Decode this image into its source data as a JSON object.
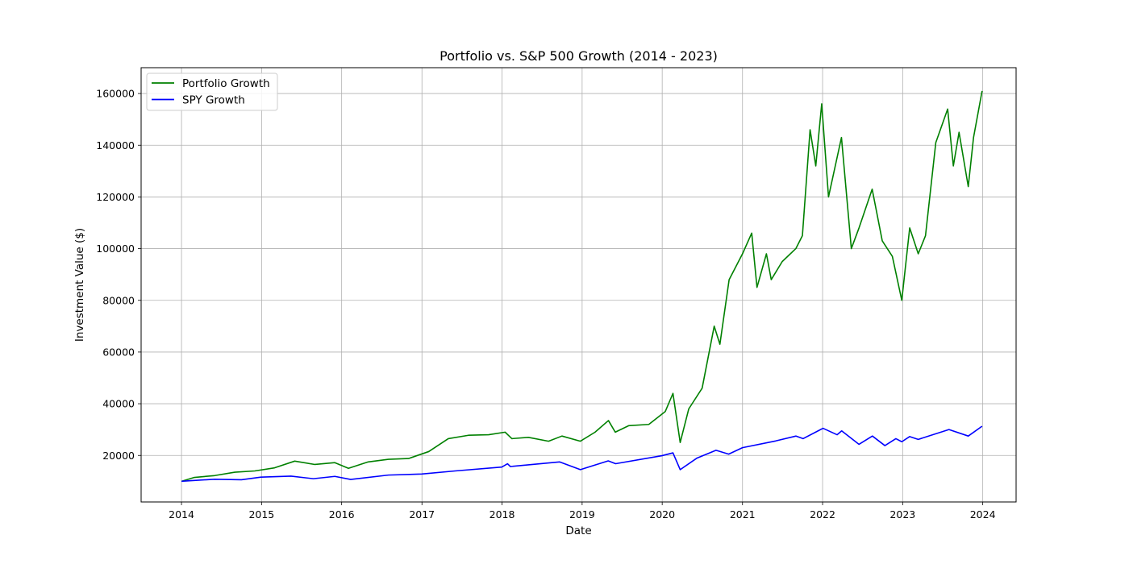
{
  "chart_data": {
    "type": "line",
    "title": "Portfolio vs. S&P 500 Growth (2014 - 2023)",
    "xlabel": "Date",
    "ylabel": "Investment Value ($)",
    "xlim": [
      "2013-07-01",
      "2024-06-01"
    ],
    "ylim": [
      2000,
      170000
    ],
    "x_ticks": [
      "2014",
      "2015",
      "2016",
      "2017",
      "2018",
      "2019",
      "2020",
      "2021",
      "2022",
      "2023",
      "2024"
    ],
    "y_ticks": [
      20000,
      40000,
      60000,
      80000,
      100000,
      120000,
      140000,
      160000
    ],
    "grid": true,
    "legend_position": "upper-left",
    "series": [
      {
        "name": "Portfolio Growth",
        "color": "#008000",
        "x": [
          "2014-01-01",
          "2014-03-01",
          "2014-06-01",
          "2014-09-01",
          "2014-12-01",
          "2015-03-01",
          "2015-06-01",
          "2015-09-01",
          "2015-12-01",
          "2016-02-01",
          "2016-05-01",
          "2016-08-01",
          "2016-11-01",
          "2017-02-01",
          "2017-05-01",
          "2017-08-01",
          "2017-11-01",
          "2018-01-15",
          "2018-02-15",
          "2018-05-01",
          "2018-08-01",
          "2018-10-01",
          "2018-12-24",
          "2019-03-01",
          "2019-05-01",
          "2019-06-01",
          "2019-08-01",
          "2019-11-01",
          "2020-01-15",
          "2020-02-19",
          "2020-03-23",
          "2020-05-01",
          "2020-07-01",
          "2020-08-25",
          "2020-09-20",
          "2020-11-01",
          "2021-01-01",
          "2021-02-12",
          "2021-03-08",
          "2021-04-20",
          "2021-05-12",
          "2021-07-01",
          "2021-09-01",
          "2021-10-01",
          "2021-11-05",
          "2021-12-01",
          "2021-12-28",
          "2022-01-28",
          "2022-03-28",
          "2022-05-12",
          "2022-06-16",
          "2022-08-15",
          "2022-09-30",
          "2022-11-15",
          "2022-12-28",
          "2023-02-02",
          "2023-03-13",
          "2023-04-15",
          "2023-06-01",
          "2023-07-25",
          "2023-08-20",
          "2023-09-15",
          "2023-10-27",
          "2023-11-20",
          "2023-12-29"
        ],
        "values": [
          10000,
          11500,
          12200,
          13500,
          14000,
          15200,
          17800,
          16500,
          17200,
          15000,
          17500,
          18500,
          18800,
          21500,
          26500,
          27800,
          28000,
          29000,
          26500,
          27000,
          25500,
          27500,
          25500,
          29000,
          33500,
          29000,
          31500,
          32000,
          37000,
          44000,
          25000,
          38000,
          46000,
          70000,
          63000,
          88000,
          98000,
          106000,
          85000,
          98000,
          88000,
          95000,
          100000,
          105000,
          146000,
          132000,
          156000,
          120000,
          143000,
          100000,
          108000,
          123000,
          103000,
          97000,
          80000,
          108000,
          98000,
          105000,
          141000,
          154000,
          132000,
          145000,
          124000,
          143000,
          161000
        ]
      },
      {
        "name": "SPY Growth",
        "color": "#0000ff",
        "x": [
          "2014-01-01",
          "2014-06-01",
          "2014-10-01",
          "2014-12-29",
          "2015-05-15",
          "2015-08-25",
          "2015-12-01",
          "2016-02-11",
          "2016-08-01",
          "2016-12-31",
          "2017-06-01",
          "2017-12-31",
          "2018-01-26",
          "2018-02-08",
          "2018-09-20",
          "2018-12-24",
          "2019-04-30",
          "2019-06-03",
          "2019-12-31",
          "2020-02-19",
          "2020-03-23",
          "2020-06-08",
          "2020-09-02",
          "2020-10-30",
          "2021-01-01",
          "2021-06-01",
          "2021-09-02",
          "2021-10-04",
          "2022-01-03",
          "2022-03-08",
          "2022-03-29",
          "2022-06-16",
          "2022-08-16",
          "2022-10-12",
          "2022-12-01",
          "2022-12-28",
          "2023-02-02",
          "2023-03-13",
          "2023-07-31",
          "2023-10-27",
          "2023-12-29"
        ],
        "values": [
          10000,
          10800,
          10600,
          11600,
          12000,
          11000,
          11900,
          10700,
          12400,
          12800,
          14000,
          15500,
          16800,
          15700,
          17500,
          14500,
          17900,
          16800,
          19900,
          21000,
          14500,
          19000,
          22000,
          20500,
          23000,
          25600,
          27500,
          26500,
          30500,
          28000,
          29500,
          24300,
          27500,
          23800,
          26500,
          25300,
          27300,
          26200,
          30000,
          27500,
          31300
        ]
      }
    ]
  }
}
